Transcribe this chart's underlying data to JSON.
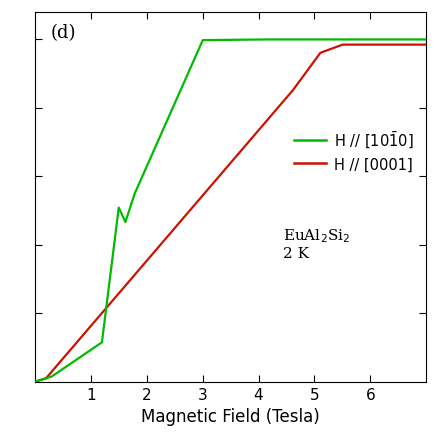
{
  "xlabel": "Magnetic Field (Tesla)",
  "green_color": "#00bb00",
  "red_color": "#cc1100",
  "background_color": "#ffffff",
  "panel_label": "(d)",
  "xlim": [
    0,
    7
  ],
  "ylim_min": 0,
  "ylim_max": 1.08,
  "figsize": [
    4.35,
    4.35
  ],
  "dpi": 100
}
